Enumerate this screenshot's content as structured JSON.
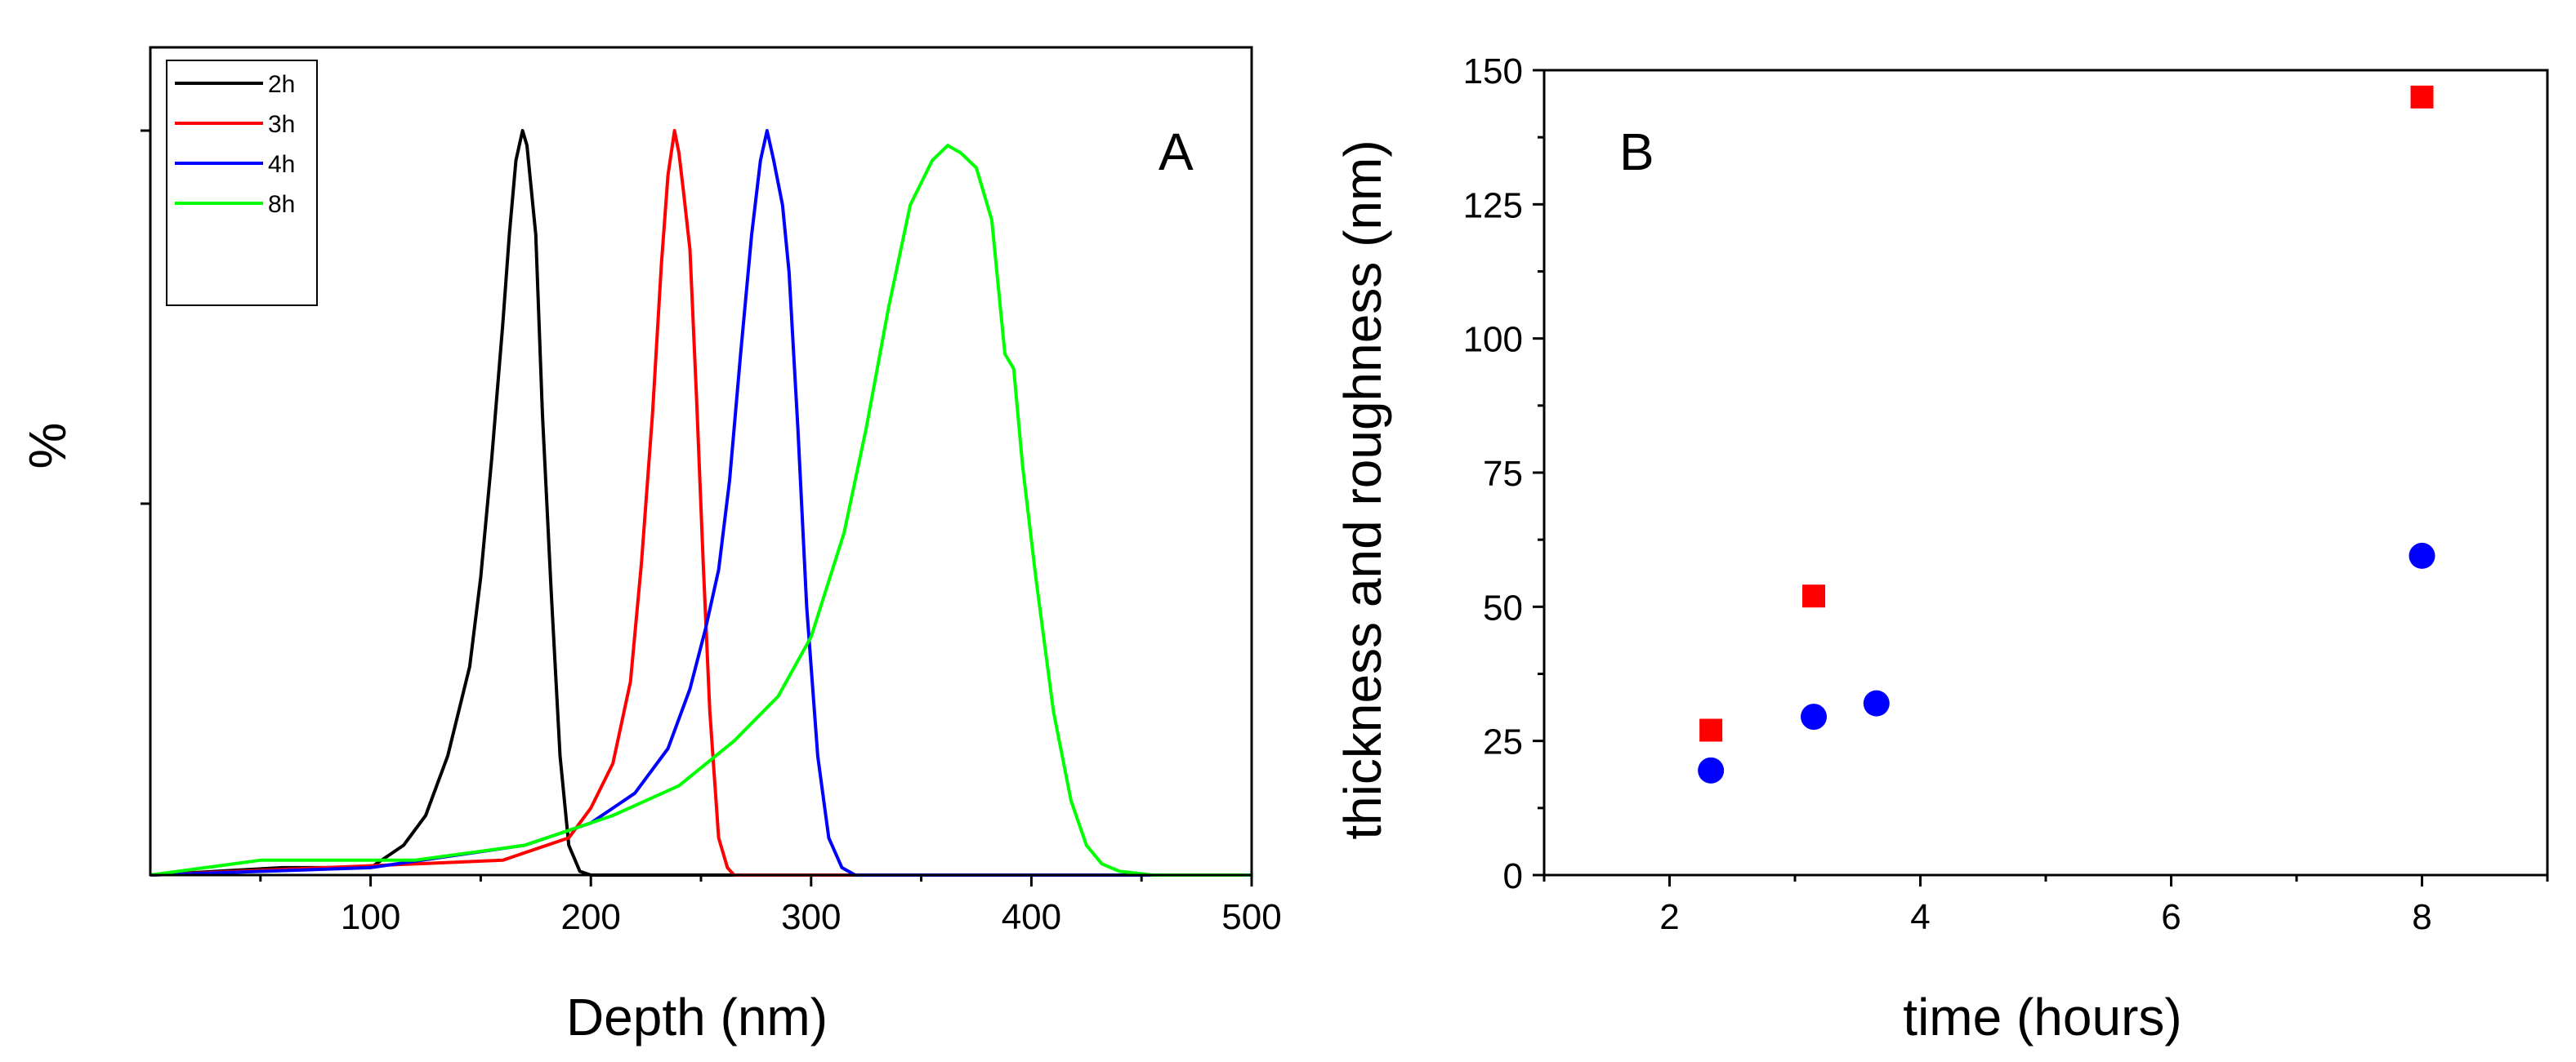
{
  "chart_data": [
    {
      "panel": "A",
      "type": "line",
      "title": "",
      "panel_label": "A",
      "xlabel": "Depth (nm)",
      "ylabel": "%",
      "xlim": [
        0,
        500
      ],
      "ylim": [
        0,
        1.0
      ],
      "xticks": [
        100,
        200,
        300,
        400,
        500
      ],
      "legend": {
        "position": "top-left",
        "entries": [
          "2h",
          "3h",
          "4h",
          "8h"
        ]
      },
      "series": [
        {
          "name": "2h",
          "color": "#000000",
          "x": [
            0,
            60,
            100,
            115,
            125,
            135,
            145,
            150,
            155,
            160,
            163,
            166,
            169,
            171,
            173,
            175,
            178,
            182,
            186,
            190,
            195,
            200,
            500
          ],
          "y": [
            0,
            0.01,
            0.01,
            0.04,
            0.08,
            0.16,
            0.28,
            0.4,
            0.56,
            0.74,
            0.86,
            0.96,
            1.0,
            0.98,
            0.92,
            0.86,
            0.62,
            0.38,
            0.16,
            0.04,
            0.005,
            0,
            0
          ]
        },
        {
          "name": "3h",
          "color": "#ff0000",
          "x": [
            0,
            80,
            160,
            190,
            200,
            210,
            218,
            223,
            228,
            232,
            235,
            238,
            240,
            242,
            245,
            248,
            251,
            254,
            258,
            262,
            265,
            500
          ],
          "y": [
            0,
            0.01,
            0.02,
            0.05,
            0.09,
            0.15,
            0.26,
            0.42,
            0.62,
            0.82,
            0.94,
            1.0,
            0.97,
            0.92,
            0.84,
            0.64,
            0.42,
            0.22,
            0.05,
            0.01,
            0,
            0
          ]
        },
        {
          "name": "4h",
          "color": "#0000ff",
          "x": [
            0,
            100,
            170,
            200,
            220,
            235,
            245,
            252,
            258,
            263,
            268,
            273,
            277,
            280,
            283,
            287,
            290,
            294,
            298,
            303,
            308,
            314,
            320,
            500
          ],
          "y": [
            0,
            0.01,
            0.04,
            0.07,
            0.11,
            0.17,
            0.25,
            0.33,
            0.41,
            0.53,
            0.7,
            0.86,
            0.96,
            1.0,
            0.96,
            0.9,
            0.81,
            0.6,
            0.36,
            0.16,
            0.05,
            0.01,
            0,
            0
          ]
        },
        {
          "name": "8h",
          "color": "#00ff00",
          "x": [
            0,
            50,
            120,
            170,
            210,
            240,
            265,
            285,
            300,
            315,
            325,
            335,
            345,
            355,
            362,
            368,
            375,
            382,
            388,
            392,
            396,
            402,
            410,
            418,
            425,
            432,
            440,
            455,
            500
          ],
          "y": [
            0,
            0.02,
            0.02,
            0.04,
            0.08,
            0.12,
            0.18,
            0.24,
            0.32,
            0.46,
            0.6,
            0.76,
            0.9,
            0.96,
            0.98,
            0.97,
            0.95,
            0.88,
            0.7,
            0.68,
            0.55,
            0.4,
            0.22,
            0.1,
            0.04,
            0.015,
            0.005,
            0,
            0
          ]
        }
      ]
    },
    {
      "panel": "B",
      "type": "scatter",
      "title": "",
      "panel_label": "B",
      "xlabel": "time (hours)",
      "ylabel": "thickness and roughness (nm)",
      "xlim": [
        1,
        9
      ],
      "ylim": [
        0,
        150
      ],
      "xticks": [
        2,
        4,
        6,
        8
      ],
      "yticks": [
        0,
        25,
        50,
        75,
        100,
        125,
        150
      ],
      "series": [
        {
          "name": "thickness",
          "marker": "square",
          "color": "#ff0000",
          "x": [
            2.33,
            3.15,
            8.0
          ],
          "y": [
            27,
            52,
            145
          ]
        },
        {
          "name": "roughness",
          "marker": "circle",
          "color": "#0000ff",
          "x": [
            2.33,
            3.15,
            3.65,
            8.0
          ],
          "y": [
            19.5,
            29.5,
            32,
            59.5
          ]
        }
      ]
    }
  ]
}
